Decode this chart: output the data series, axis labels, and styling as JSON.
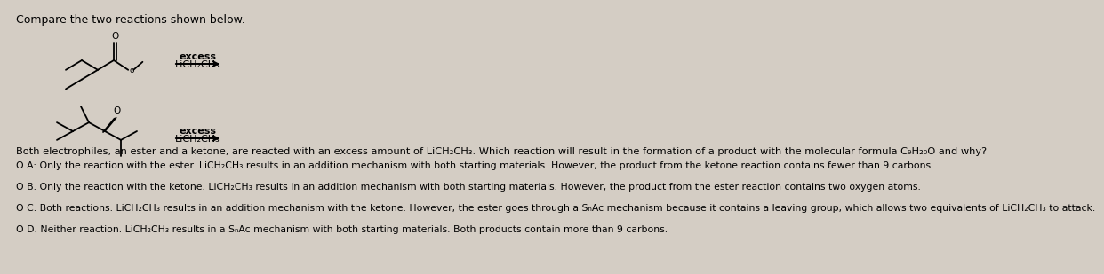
{
  "title": "Compare the two reactions shown below.",
  "bg_color": "#d4cdc4",
  "text_color": "#000000",
  "question": "Both electrophiles, an ester and a ketone, are reacted with an excess amount of LiCH₂CH₃. Which reaction will result in the formation of a product with the molecular formula C₉H₂₀O and why?",
  "options": [
    "O A: Only the reaction with the ester. LiCH₂CH₃ results in an addition mechanism with both starting materials. However, the product from the ketone reaction contains fewer than 9 carbons.",
    "O B. Only the reaction with the ketone. LiCH₂CH₃ results in an addition mechanism with both starting materials. However, the product from the ester reaction contains two oxygen atoms.",
    "O C. Both reactions. LiCH₂CH₃ results in an addition mechanism with the ketone. However, the ester goes through a SₙAc mechanism because it contains a leaving group, which allows two equivalents of LiCH₂CH₃ to attack.",
    "O D. Neither reaction. LiCH₂CH₃ results in a SₙAc mechanism with both starting materials. Both products contain more than 9 carbons."
  ],
  "excess_label": "excess",
  "reagent_label": "LiCH₂CH₃",
  "font_size_title": 9.0,
  "font_size_question": 8.2,
  "font_size_options": 7.8,
  "font_size_reagent": 8.0,
  "font_size_struct": 7.5,
  "line_width": 1.3
}
